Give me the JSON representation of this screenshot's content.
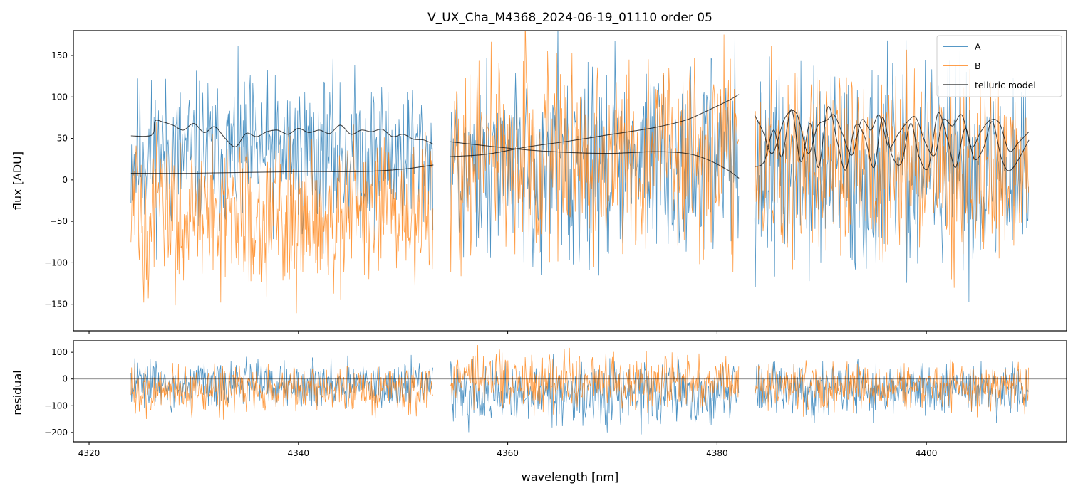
{
  "chart_data": {
    "type": "line",
    "title": "V_UX_Cha_M4368_2024-06-19_01110  order 05",
    "colors": {
      "A": "#1f77b4",
      "B": "#ff7f0e",
      "telluric": "#000000"
    },
    "segments": [
      {
        "x_start": 4324.0,
        "x_end": 4352.9
      },
      {
        "x_start": 4354.5,
        "x_end": 4382.1
      },
      {
        "x_start": 4383.6,
        "x_end": 4409.8
      }
    ],
    "panels": [
      {
        "name": "flux",
        "xlabel": "",
        "ylabel": "flux [ADU]",
        "xlim": [
          4318.5,
          4413.4
        ],
        "ylim": [
          -182,
          180
        ],
        "yticks": [
          150,
          100,
          50,
          0,
          -50,
          -100,
          -150
        ],
        "ytick_labels": [
          "150",
          "100",
          "50",
          "0",
          "−50",
          "−100",
          "−150"
        ],
        "xticks": [
          4320,
          4340,
          4360,
          4380,
          4400
        ],
        "series": [
          {
            "name": "A",
            "noise_center": [
              30,
              20,
              10
            ],
            "noise_amplitude": [
              120,
              150,
              160
            ]
          },
          {
            "name": "B",
            "noise_center": [
              -40,
              30,
              10
            ],
            "noise_amplitude": [
              120,
              150,
              150
            ]
          }
        ],
        "telluric_model": [
          {
            "name": "telluric A, segment 1",
            "x": [
              4324.0,
              4326.0,
              4326.3,
              4327.0,
              4328.0,
              4329.0,
              4330.0,
              4331.0,
              4332.0,
              4333.0,
              4334.0,
              4335.0,
              4336.0,
              4337.0,
              4338.0,
              4339.0,
              4340.0,
              4341.0,
              4342.0,
              4343.0,
              4344.0,
              4345.0,
              4346.0,
              4347.0,
              4348.0,
              4349.0,
              4350.0,
              4351.0,
              4352.0,
              4352.9
            ],
            "y": [
              53,
              54,
              71,
              70,
              66,
              60,
              68,
              57,
              64,
              50,
              40,
              56,
              52,
              58,
              60,
              55,
              62,
              57,
              60,
              56,
              66,
              55,
              60,
              58,
              61,
              52,
              55,
              49,
              48,
              43
            ]
          },
          {
            "name": "telluric B, segment 1",
            "x": [
              4324.0,
              4330.0,
              4340.0,
              4346.0,
              4350.0,
              4352.9
            ],
            "y": [
              8,
              8,
              10,
              10,
              13,
              18
            ]
          },
          {
            "name": "telluric A, segment 2",
            "x": [
              4354.5,
              4358.0,
              4362.0,
              4366.0,
              4370.0,
              4374.0,
              4377.0,
              4379.0,
              4381.0,
              4382.1
            ],
            "y": [
              46,
              41,
              36,
              33,
              32,
              34,
              32,
              25,
              12,
              2
            ]
          },
          {
            "name": "telluric B, segment 2",
            "x": [
              4354.5,
              4358.0,
              4362.0,
              4366.0,
              4370.0,
              4374.0,
              4377.0,
              4379.0,
              4381.0,
              4382.1
            ],
            "y": [
              28,
              31,
              40,
              47,
              55,
              63,
              72,
              83,
              95,
              103
            ]
          },
          {
            "name": "telluric A, segment 3",
            "x": [
              4383.6,
              4384.4,
              4385.3,
              4386.5,
              4387.6,
              4388.7,
              4389.6,
              4390.5,
              4391.2,
              4392.0,
              4392.9,
              4393.8,
              4394.7,
              4395.5,
              4396.4,
              4397.3,
              4398.2,
              4399.0,
              4399.9,
              4400.8,
              4401.6,
              4402.5,
              4403.4,
              4404.3,
              4405.2,
              4406.1,
              4407.0,
              4407.9,
              4408.8,
              4409.8
            ],
            "y": [
              78,
              58,
              32,
              75,
              80,
              32,
              65,
              72,
              78,
              55,
              30,
              72,
              60,
              78,
              40,
              55,
              70,
              75,
              45,
              30,
              72,
              65,
              78,
              40,
              58,
              72,
              68,
              35,
              45,
              58
            ]
          },
          {
            "name": "telluric B, segment 3",
            "x": [
              4383.6,
              4384.5,
              4385.4,
              4386.2,
              4387.1,
              4388.0,
              4388.9,
              4389.7,
              4390.6,
              4391.5,
              4392.3,
              4393.2,
              4394.1,
              4395.0,
              4395.8,
              4396.7,
              4397.6,
              4398.5,
              4399.3,
              4400.2,
              4401.1,
              4402.0,
              4402.8,
              4403.7,
              4404.6,
              4405.5,
              4406.3,
              4407.2,
              4408.1,
              4409.8
            ],
            "y": [
              16,
              22,
              60,
              28,
              85,
              22,
              68,
              15,
              88,
              45,
              12,
              65,
              52,
              15,
              75,
              30,
              20,
              68,
              28,
              15,
              80,
              50,
              15,
              62,
              25,
              40,
              70,
              25,
              12,
              48
            ]
          }
        ],
        "legend": {
          "placement": "upper right",
          "entries": [
            {
              "label": "A",
              "color": "#1f77b4"
            },
            {
              "label": "B",
              "color": "#ff7f0e"
            },
            {
              "label": "telluric model",
              "color": "#000000"
            }
          ]
        }
      },
      {
        "name": "residual",
        "xlabel": "wavelength [nm]",
        "ylabel": "residual",
        "xlim": [
          4318.5,
          4413.4
        ],
        "ylim": [
          -235,
          143
        ],
        "yticks": [
          100,
          0,
          -100,
          -200
        ],
        "ytick_labels": [
          "100",
          "0",
          "−100",
          "−200"
        ],
        "xticks": [
          4320,
          4340,
          4360,
          4380,
          4400
        ],
        "xtick_labels": [
          "4320",
          "4340",
          "4360",
          "4380",
          "4400"
        ],
        "zero_line": 0,
        "series": [
          {
            "name": "A",
            "noise_center": [
              -20,
              -60,
              -40
            ],
            "noise_amplitude": [
              110,
              150,
              130
            ]
          },
          {
            "name": "B",
            "noise_center": [
              -40,
              -10,
              -30
            ],
            "noise_amplitude": [
              110,
              130,
              110
            ]
          }
        ]
      }
    ]
  }
}
